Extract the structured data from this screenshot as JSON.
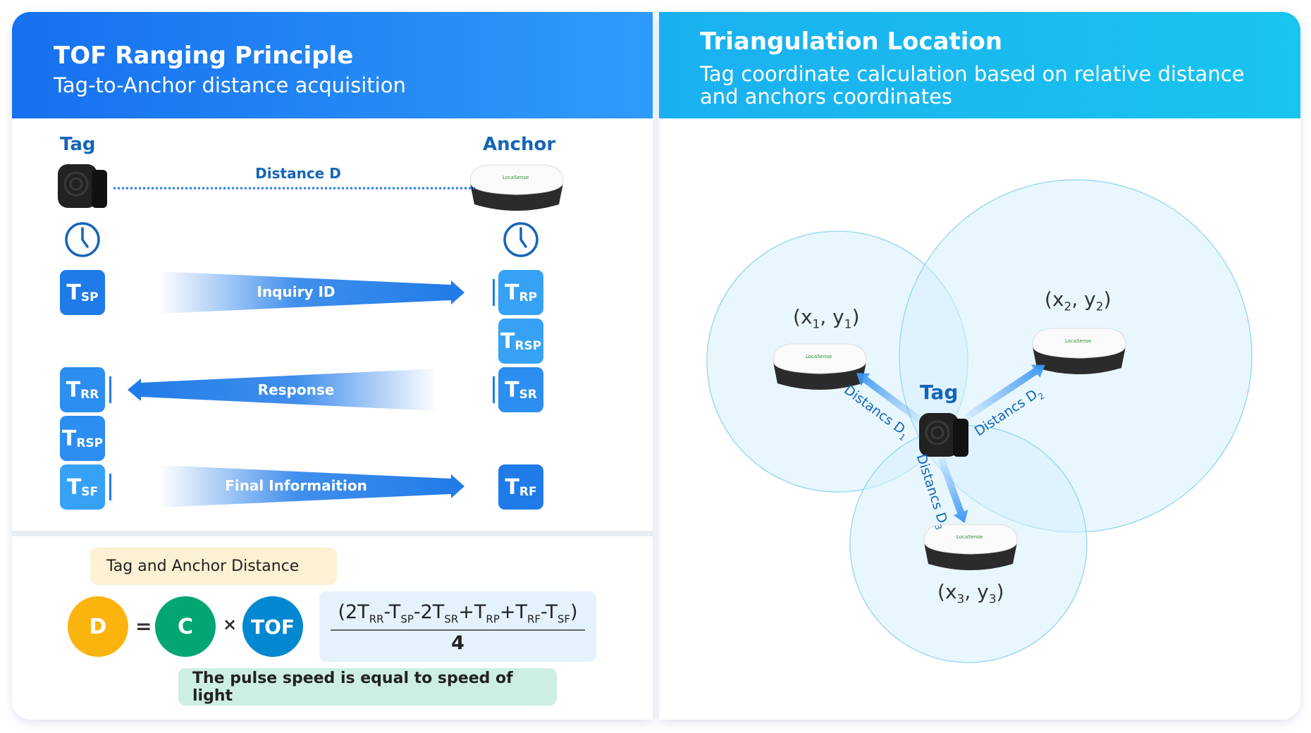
{
  "left": {
    "title": "TOF Ranging Principle",
    "subtitle": "Tag-to-Anchor distance acquisition",
    "tag_label": "Tag",
    "anchor_label": "Anchor",
    "distance_label": "Distance D",
    "boxes": {
      "tsp": {
        "main": "T",
        "sub": "SP"
      },
      "trp": {
        "main": "T",
        "sub": "RP"
      },
      "trsp_anchor": {
        "main": "T",
        "sub": "RSP"
      },
      "tsr": {
        "main": "T",
        "sub": "SR"
      },
      "trr": {
        "main": "T",
        "sub": "RR"
      },
      "trsp_tag": {
        "main": "T",
        "sub": "RSP"
      },
      "tsf": {
        "main": "T",
        "sub": "SF"
      },
      "trf": {
        "main": "T",
        "sub": "RF"
      }
    },
    "arrows": {
      "inquiry": "Inquiry ID",
      "response": "Response",
      "final": "Final Informaition"
    },
    "formula": {
      "distance_callout": "Tag and Anchor Distance",
      "d": "D",
      "equals": "=",
      "c": "C",
      "times": "×",
      "tof": "TOF",
      "numerator": [
        {
          "t": "(2T",
          "s": "RR"
        },
        {
          "t": "-T",
          "s": "SP"
        },
        {
          "t": "-2T",
          "s": "SR"
        },
        {
          "t": "+T",
          "s": "RP"
        },
        {
          "t": "+T",
          "s": "RF"
        },
        {
          "t": "-T",
          "s": "SF"
        },
        {
          "t": ")",
          "s": ""
        }
      ],
      "denominator": "4",
      "speed_callout": "The pulse speed is equal to speed of light"
    }
  },
  "right": {
    "title": "Triangulation Location",
    "subtitle_line1": "Tag coordinate calculation based on relative distance",
    "subtitle_line2": "and anchors coordinates",
    "tag_label": "Tag",
    "anchors": [
      {
        "x": "x",
        "xs": "1",
        "y": "y",
        "ys": "1"
      },
      {
        "x": "x",
        "xs": "2",
        "y": "y",
        "ys": "2"
      },
      {
        "x": "x",
        "xs": "3",
        "y": "y",
        "ys": "3"
      }
    ],
    "distances": [
      {
        "t": "Distancs D",
        "s": "1"
      },
      {
        "t": "Distancs D",
        "s": "2"
      },
      {
        "t": "Distancs D",
        "s": "3"
      }
    ]
  },
  "colors": {
    "primary": "#1f7be8",
    "d": "#fbb40e",
    "c": "#03a673",
    "tof": "#0288d1",
    "callout_yellow": "#fdf1d3",
    "callout_green": "#cdeee3",
    "circle": "#d6f1fd"
  }
}
